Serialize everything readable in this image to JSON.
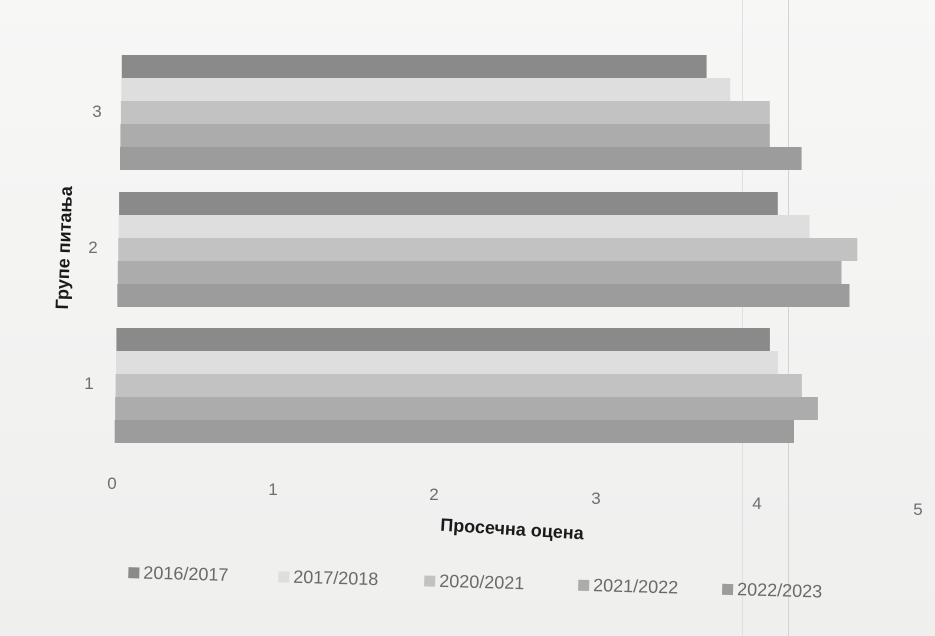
{
  "chart_data": {
    "type": "bar",
    "orientation": "horizontal",
    "categories": [
      "1",
      "2",
      "3"
    ],
    "series": [
      {
        "name": "2016/2017",
        "color": "#8a8a8a",
        "values": [
          4.1,
          4.15,
          3.7
        ]
      },
      {
        "name": "2017/2018",
        "color": "#dedede",
        "values": [
          4.15,
          4.35,
          3.85
        ]
      },
      {
        "name": "2020/2021",
        "color": "#c2c2c2",
        "values": [
          4.3,
          4.65,
          4.1
        ]
      },
      {
        "name": "2021/2022",
        "color": "#acacac",
        "values": [
          4.4,
          4.55,
          4.1
        ]
      },
      {
        "name": "2022/2023",
        "color": "#9c9c9c",
        "values": [
          4.25,
          4.6,
          4.3
        ]
      }
    ],
    "xlim": [
      0,
      5
    ],
    "x_ticks": [
      "0",
      "1",
      "2",
      "3",
      "4",
      "5"
    ],
    "xlabel": "Просечна оцена",
    "ylabel": "Групе питања",
    "legend_position": "bottom",
    "grid": false
  }
}
